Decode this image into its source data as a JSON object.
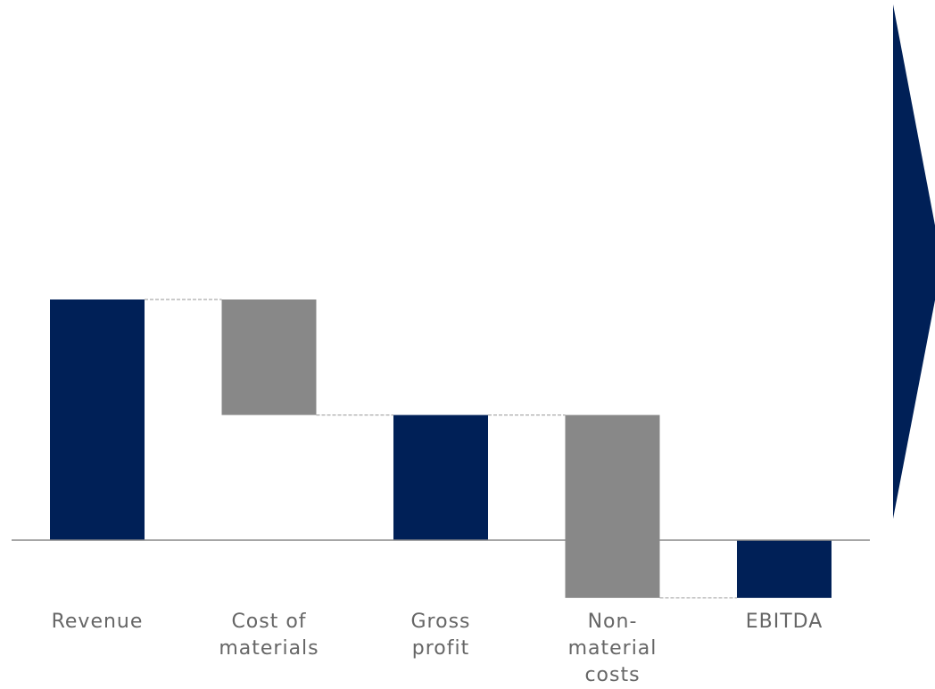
{
  "chart_data": {
    "type": "waterfall",
    "categories": [
      "Revenue",
      "Cost of\nmaterials",
      "Gross\nprofit",
      "Non-material\ncosts",
      "EBITDA"
    ],
    "steps": [
      {
        "kind": "total",
        "start": 0,
        "end": 100
      },
      {
        "kind": "delta",
        "start": 100,
        "end": 52
      },
      {
        "kind": "total",
        "start": 0,
        "end": 52
      },
      {
        "kind": "delta",
        "start": 52,
        "end": -24
      },
      {
        "kind": "total",
        "start": 0,
        "end": -24
      }
    ],
    "ylim": [
      -30,
      225
    ],
    "title": "",
    "xlabel": "",
    "ylabel": "",
    "grid": false,
    "colors": {
      "total": "#002057",
      "delta": "#888888",
      "axis": "#888888",
      "connector": "#aaaaaa",
      "label": "#666666",
      "arrow": "#002057"
    }
  }
}
